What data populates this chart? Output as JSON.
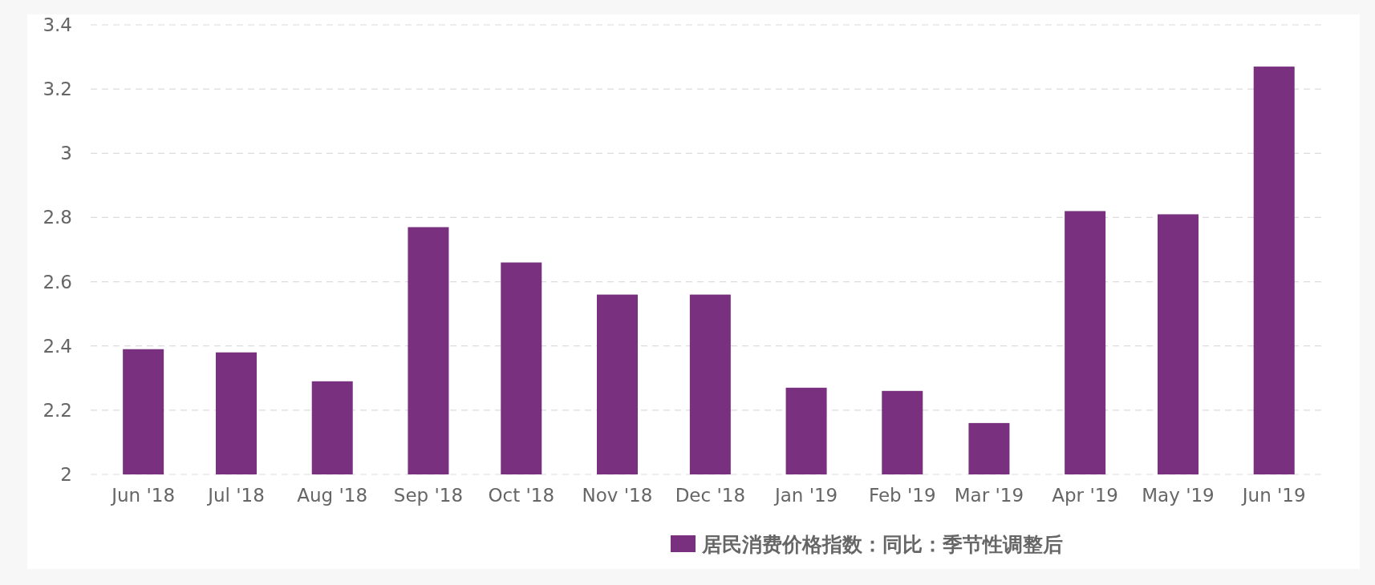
{
  "chart_data": {
    "type": "bar",
    "x": [
      "2018-06",
      "2018-07",
      "2018-08",
      "2018-09",
      "2018-10",
      "2018-11",
      "2018-12",
      "2019-01",
      "2019-02",
      "2019-03",
      "2019-04",
      "2019-05",
      "2019-06"
    ],
    "series": [
      {
        "name": "居民消费价格指数：同比：季节性调整后",
        "color": "#78307f",
        "values": [
          2.39,
          2.38,
          2.29,
          2.77,
          2.66,
          2.56,
          2.56,
          2.27,
          2.26,
          2.16,
          2.82,
          2.81,
          3.27
        ]
      }
    ],
    "xlim": [
      "2018-05-15",
      "2019-06-17"
    ],
    "xticks": [
      {
        "value": "2018-06",
        "label": "Jun '18"
      },
      {
        "value": "2018-07",
        "label": "Jul '18"
      },
      {
        "value": "2018-08",
        "label": "Aug '18"
      },
      {
        "value": "2018-09",
        "label": "Sep '18"
      },
      {
        "value": "2018-10",
        "label": "Oct '18"
      },
      {
        "value": "2018-11",
        "label": "Nov '18"
      },
      {
        "value": "2018-12",
        "label": "Dec '18"
      },
      {
        "value": "2019-01",
        "label": "Jan '19"
      },
      {
        "value": "2019-02",
        "label": "Feb '19"
      },
      {
        "value": "2019-03",
        "label": "Mar '19"
      },
      {
        "value": "2019-04",
        "label": "Apr '19"
      },
      {
        "value": "2019-05",
        "label": "May '19"
      },
      {
        "value": "2019-06",
        "label": "Jun '19"
      }
    ],
    "ylim": [
      2,
      3.4
    ],
    "yticks": [
      2,
      2.2,
      2.4,
      2.6,
      2.8,
      3,
      3.2,
      3.4
    ],
    "grid": "y",
    "legend": "bottom"
  }
}
